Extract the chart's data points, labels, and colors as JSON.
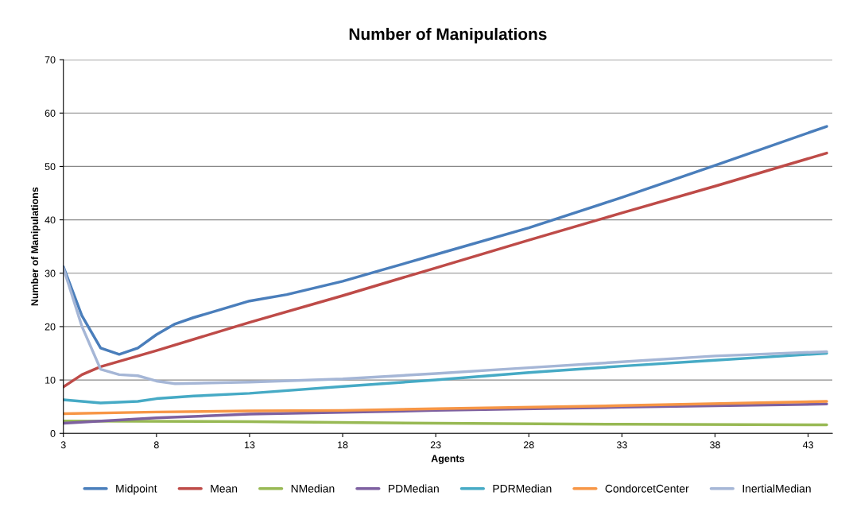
{
  "chart_data": {
    "type": "line",
    "title": "Number of Manipulations",
    "xlabel": "Agents",
    "ylabel": "Number of Manipulations",
    "xlim": [
      3,
      44.3
    ],
    "xticks": [
      3,
      8,
      13,
      18,
      23,
      28,
      33,
      38,
      43
    ],
    "ylim": [
      0,
      70
    ],
    "yticks": [
      0,
      10,
      20,
      30,
      40,
      50,
      60,
      70
    ],
    "grid": "y",
    "legend": "bottom",
    "marker": "none",
    "line_style": "solid",
    "series": [
      {
        "name": "Midpoint",
        "color": "#4a7ebb",
        "x": [
          3,
          4,
          5,
          6,
          7,
          8,
          9,
          10,
          13,
          15,
          18,
          20,
          23,
          28,
          33,
          38,
          44
        ],
        "values": [
          31.2,
          22,
          16,
          14.8,
          16,
          18.5,
          20.5,
          21.7,
          24.8,
          26,
          28.5,
          30.5,
          33.5,
          38.5,
          44.2,
          50.2,
          57.5
        ]
      },
      {
        "name": "Mean",
        "color": "#be4b48",
        "x": [
          3,
          4,
          5,
          6,
          8,
          13,
          18,
          23,
          28,
          33,
          38,
          44
        ],
        "values": [
          8.7,
          11,
          12.5,
          13.5,
          15.5,
          20.8,
          25.8,
          31,
          36.2,
          41.3,
          46.3,
          52.5
        ]
      },
      {
        "name": "NMedian",
        "color": "#98b954",
        "x": [
          3,
          13,
          23,
          33,
          44
        ],
        "values": [
          2.3,
          2.2,
          1.9,
          1.7,
          1.6
        ]
      },
      {
        "name": "PDMedian",
        "color": "#7d60a0",
        "x": [
          3,
          8,
          13,
          23,
          33,
          44
        ],
        "values": [
          1.9,
          2.9,
          3.6,
          4.3,
          4.9,
          5.5
        ]
      },
      {
        "name": "PDRMedian",
        "color": "#46aac5",
        "x": [
          3,
          5,
          7,
          8,
          10,
          13,
          18,
          23,
          28,
          33,
          38,
          44
        ],
        "values": [
          6.3,
          5.7,
          6,
          6.5,
          7,
          7.5,
          8.8,
          10,
          11.4,
          12.6,
          13.7,
          15
        ]
      },
      {
        "name": "CondorcetCenter",
        "color": "#f79646",
        "x": [
          3,
          8,
          13,
          18,
          23,
          33,
          44
        ],
        "values": [
          3.7,
          4,
          4.2,
          4.3,
          4.6,
          5.2,
          6.0
        ]
      },
      {
        "name": "InertialMedian",
        "color": "#a5b6d6",
        "x": [
          3,
          4,
          5,
          6,
          7,
          8,
          9,
          13,
          18,
          23,
          28,
          33,
          38,
          44
        ],
        "values": [
          31,
          20,
          12,
          11,
          10.8,
          9.8,
          9.3,
          9.6,
          10.2,
          11.2,
          12.3,
          13.4,
          14.5,
          15.3
        ]
      }
    ]
  }
}
